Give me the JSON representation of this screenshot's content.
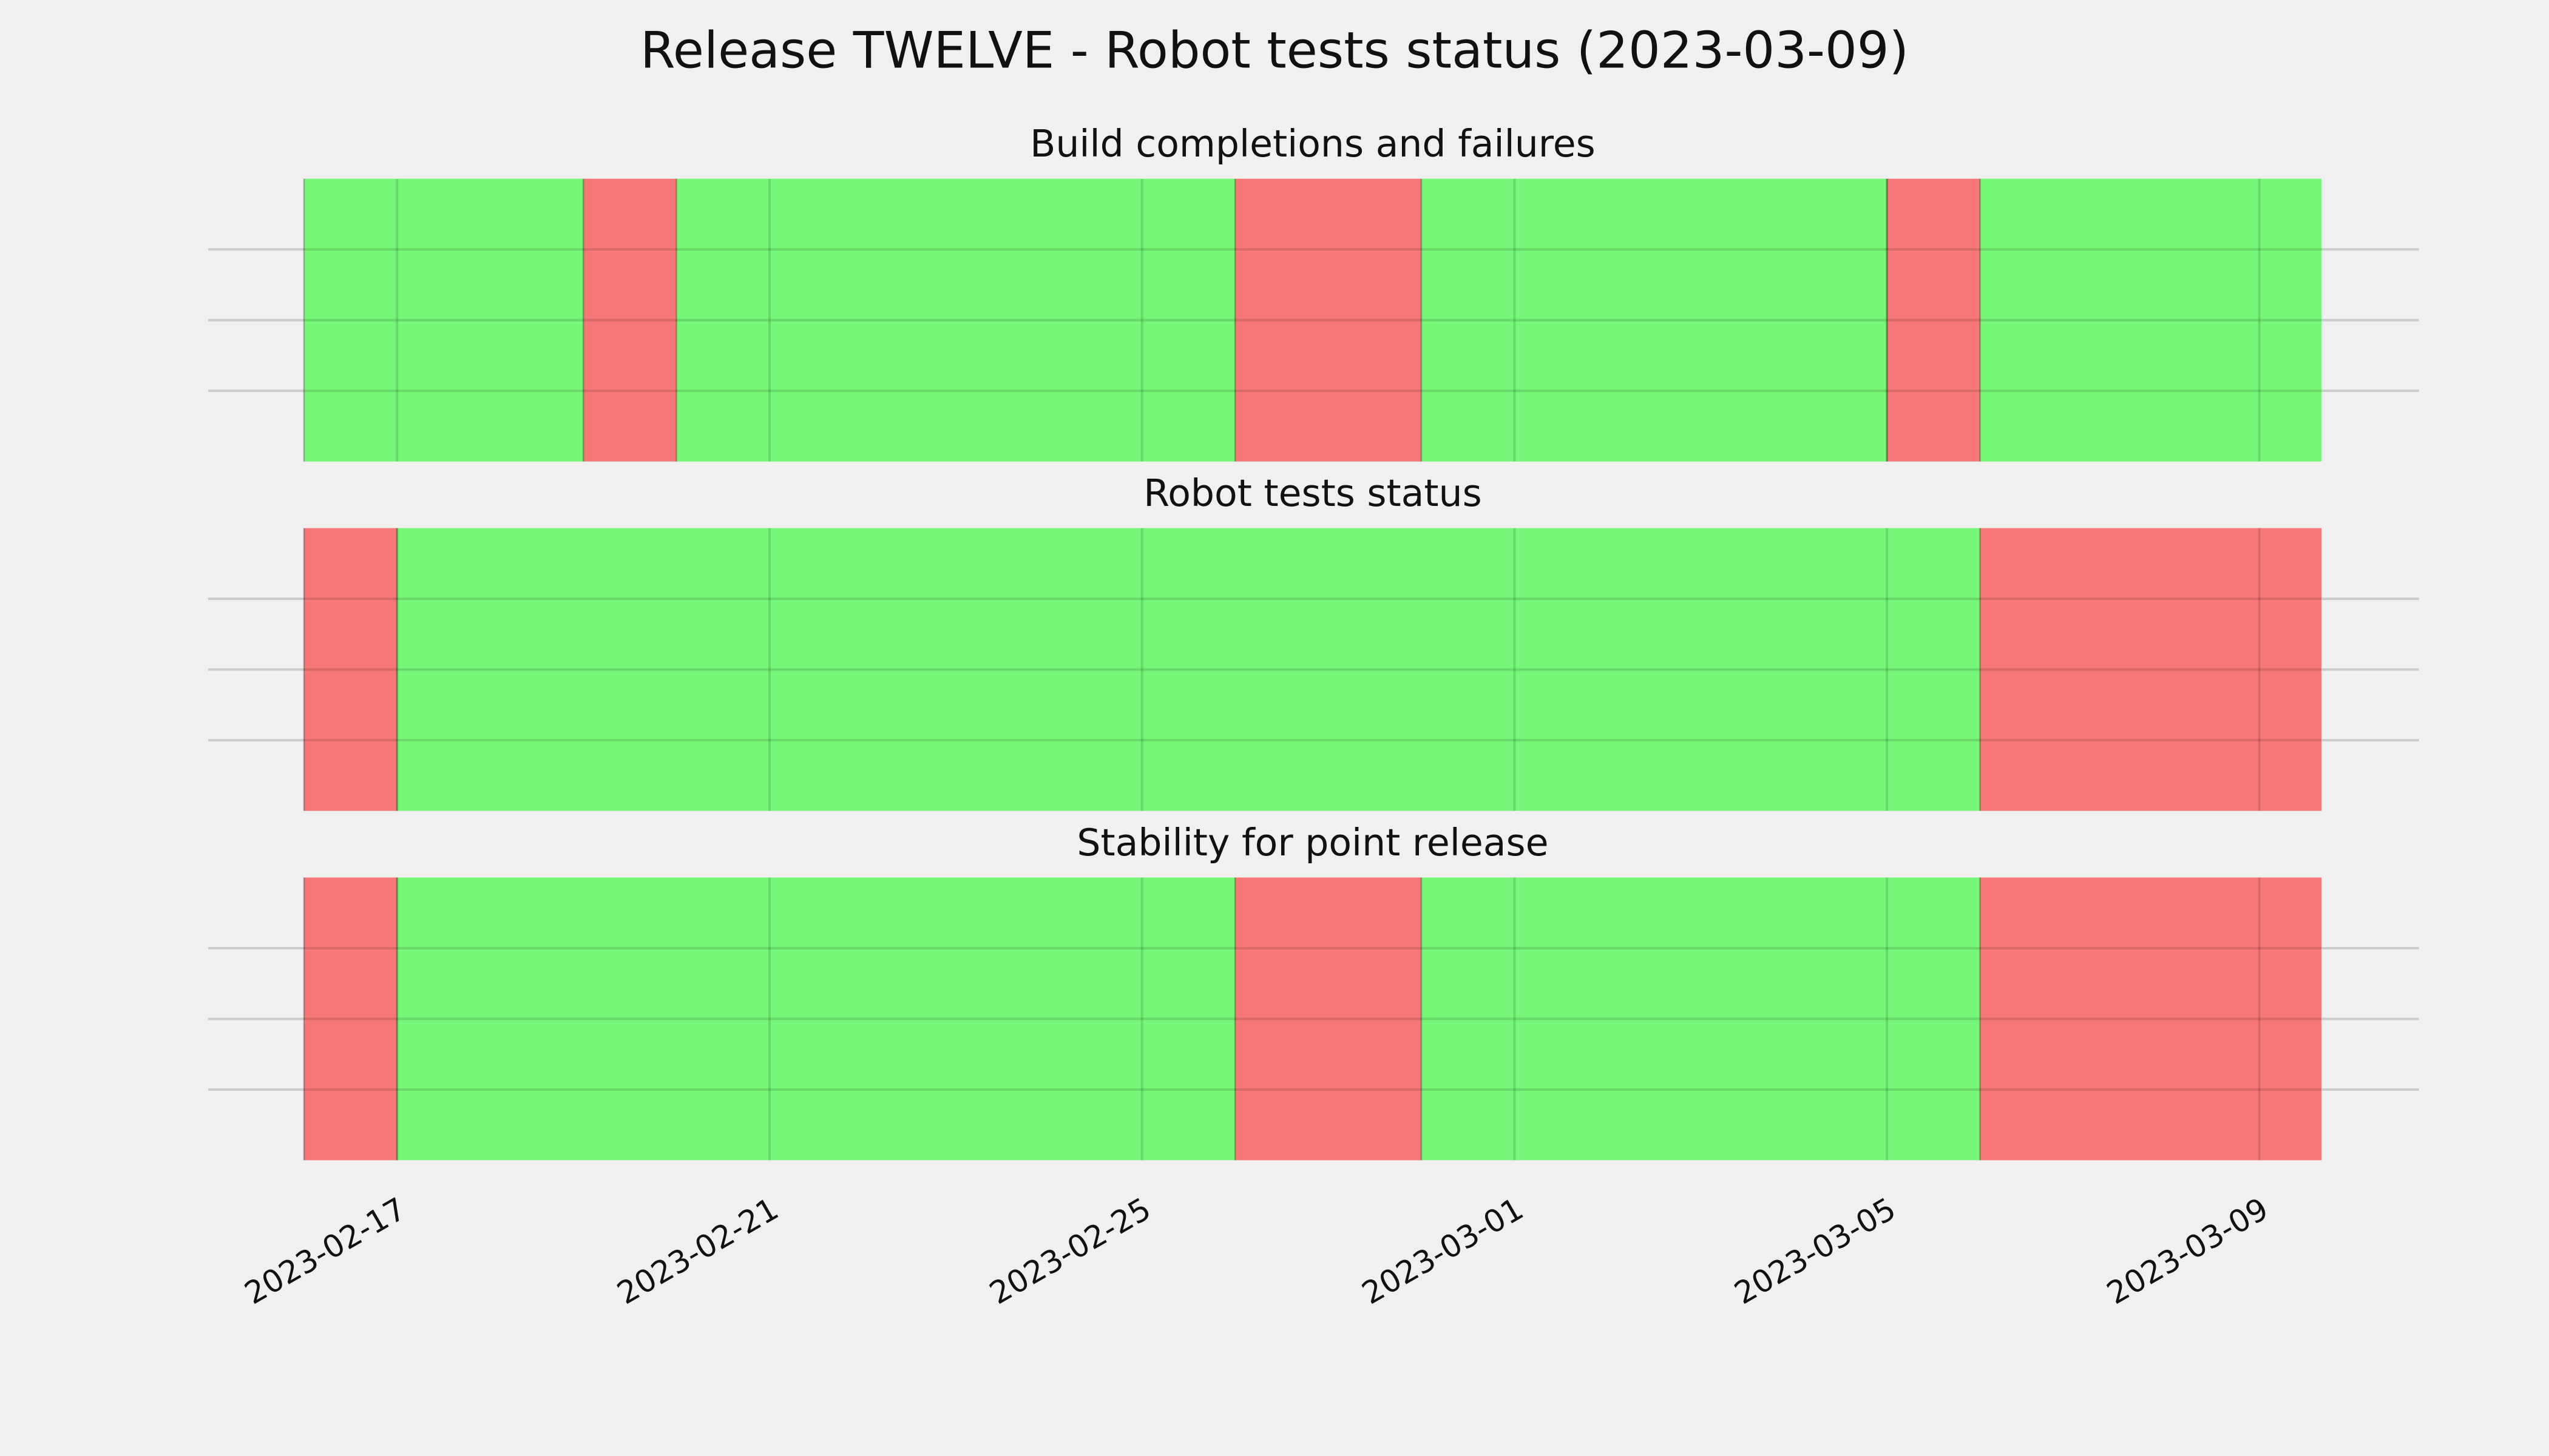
{
  "chart_data": {
    "type": "timeline",
    "title": "Release TWELVE - Robot tests status (2023-03-09)",
    "xlim": [
      "2023-02-16",
      "2023-03-09T16:00"
    ],
    "xticks": [
      "2023-02-17",
      "2023-02-21",
      "2023-02-25",
      "2023-03-01",
      "2023-03-05",
      "2023-03-09"
    ],
    "ylim": [
      0,
      1
    ],
    "ygrid": [
      0.25,
      0.5,
      0.75
    ],
    "grid": true,
    "colors": {
      "success": "#77f777",
      "failure": "#f77777"
    },
    "panels": [
      {
        "title": "Build completions and failures",
        "segments": [
          {
            "start": "2023-02-16",
            "end": "2023-02-19",
            "status": "success"
          },
          {
            "start": "2023-02-19",
            "end": "2023-02-20",
            "status": "failure"
          },
          {
            "start": "2023-02-20",
            "end": "2023-02-26",
            "status": "success"
          },
          {
            "start": "2023-02-26",
            "end": "2023-02-28",
            "status": "failure"
          },
          {
            "start": "2023-02-28",
            "end": "2023-03-05",
            "status": "success"
          },
          {
            "start": "2023-03-05",
            "end": "2023-03-06",
            "status": "failure"
          },
          {
            "start": "2023-03-06",
            "end": "2023-03-09T16:00",
            "status": "success"
          }
        ]
      },
      {
        "title": "Robot tests status",
        "segments": [
          {
            "start": "2023-02-16",
            "end": "2023-02-17",
            "status": "failure"
          },
          {
            "start": "2023-02-17",
            "end": "2023-03-06",
            "status": "success"
          },
          {
            "start": "2023-03-06",
            "end": "2023-03-09T16:00",
            "status": "failure"
          }
        ]
      },
      {
        "title": "Stability for point release",
        "segments": [
          {
            "start": "2023-02-16",
            "end": "2023-02-17",
            "status": "failure"
          },
          {
            "start": "2023-02-17",
            "end": "2023-02-26",
            "status": "success"
          },
          {
            "start": "2023-02-26",
            "end": "2023-02-28",
            "status": "failure"
          },
          {
            "start": "2023-02-28",
            "end": "2023-03-06",
            "status": "success"
          },
          {
            "start": "2023-03-06",
            "end": "2023-03-09T16:00",
            "status": "failure"
          }
        ]
      }
    ]
  }
}
